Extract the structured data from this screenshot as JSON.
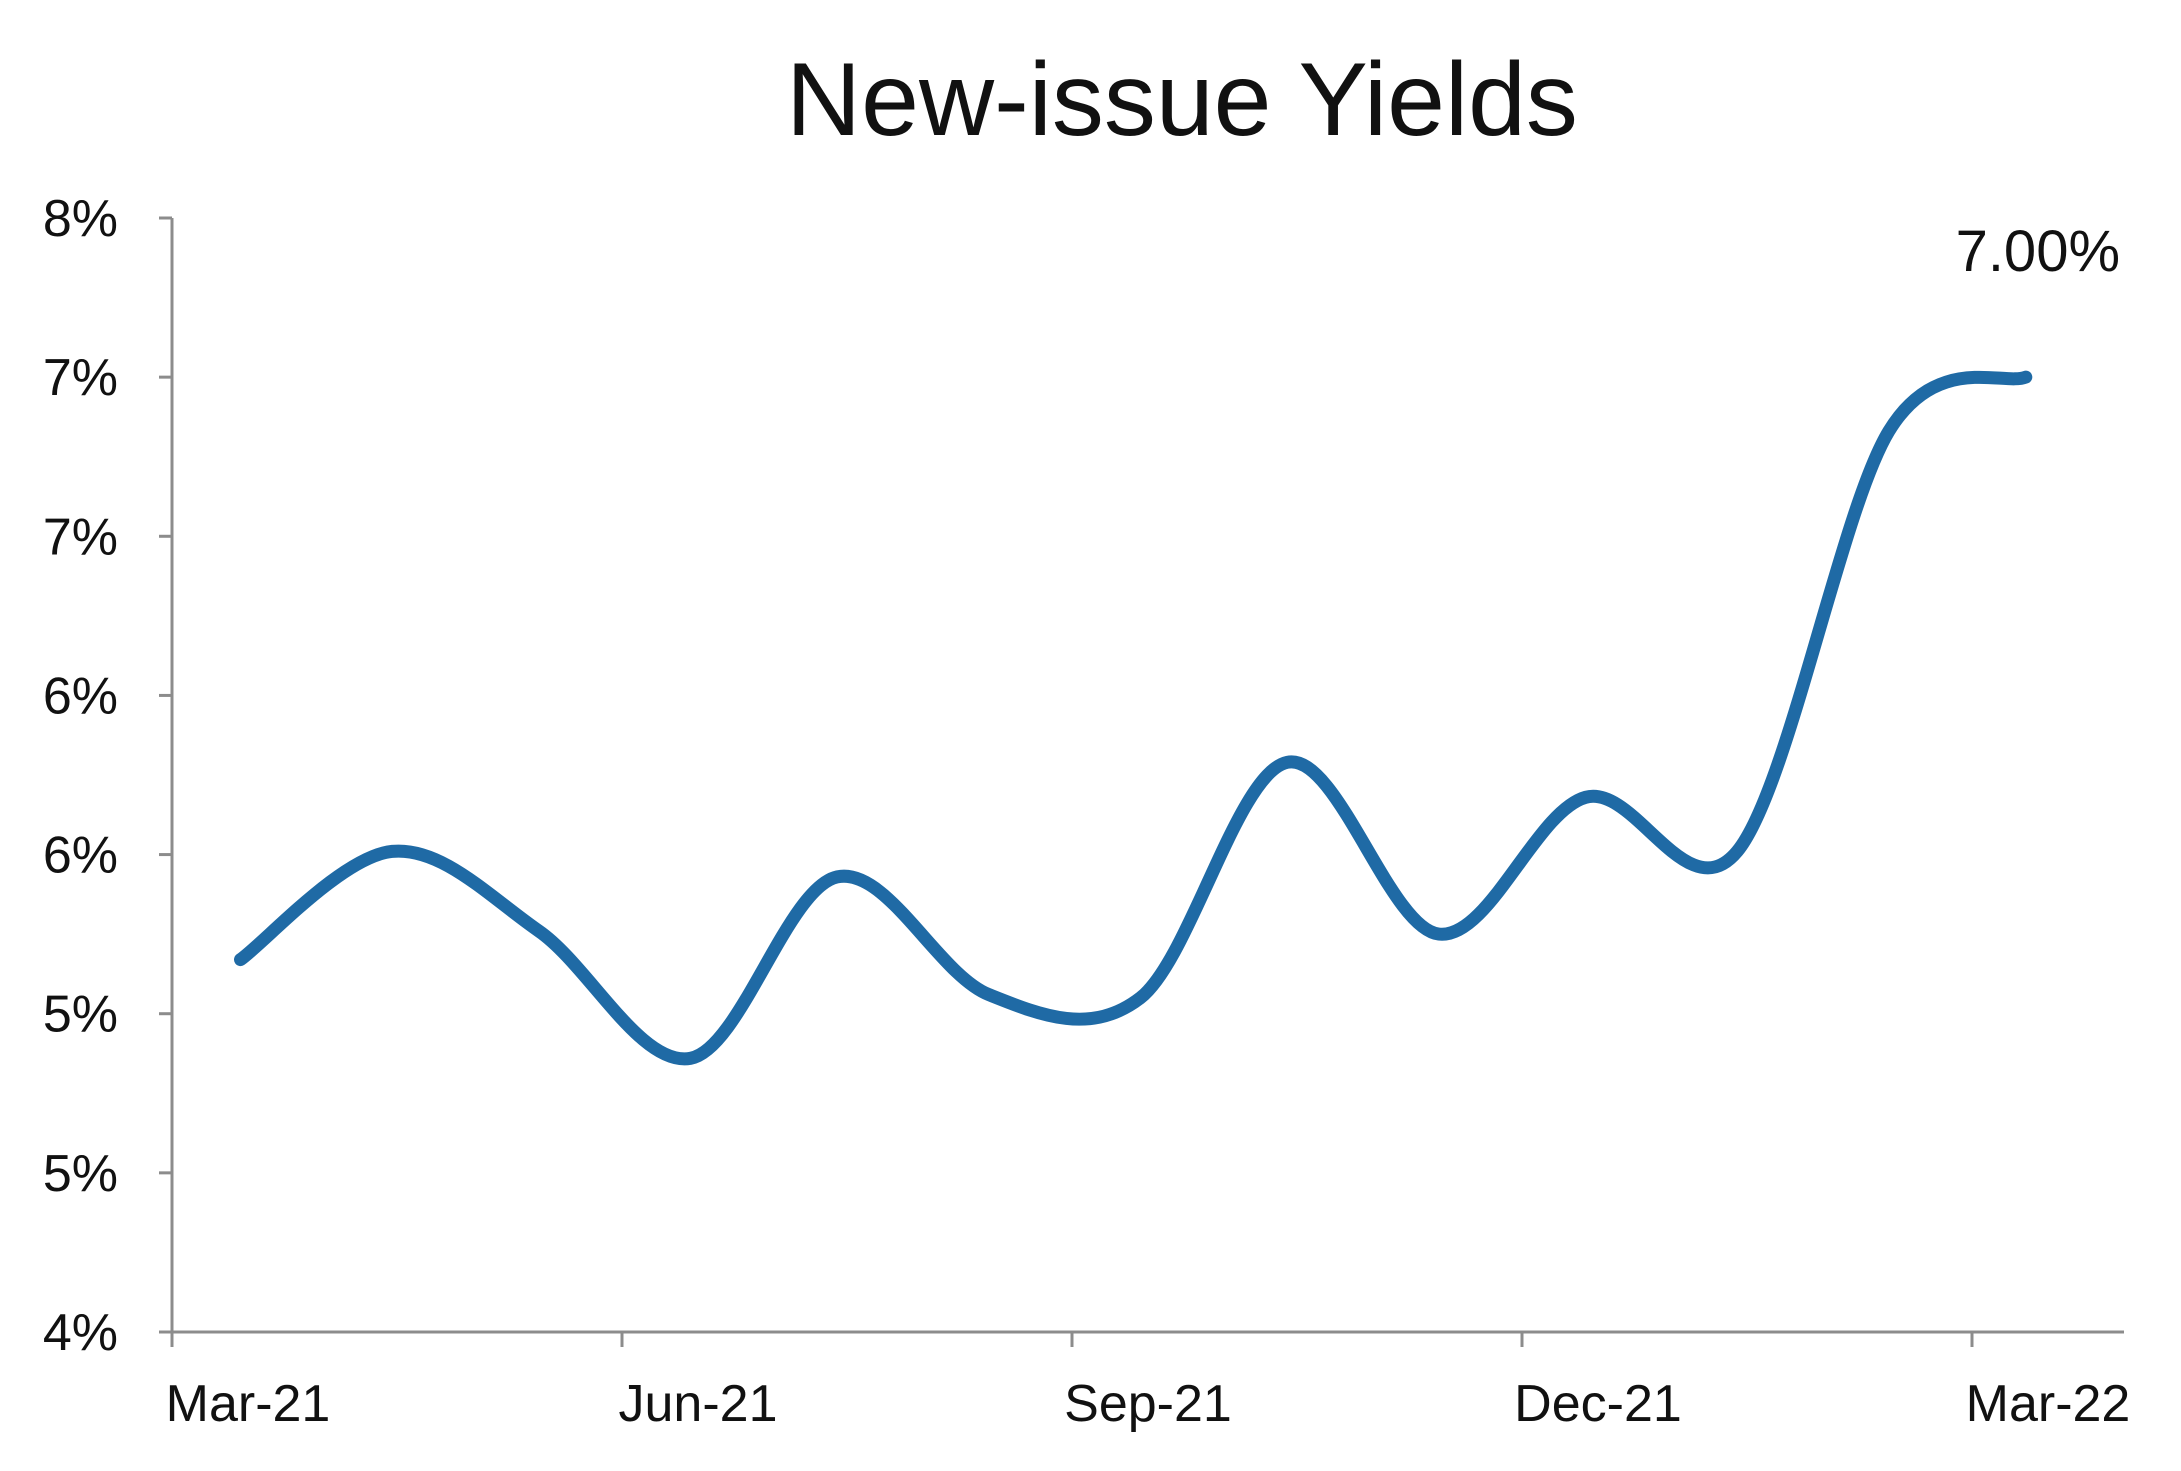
{
  "chart_data": {
    "type": "line",
    "title": "New-issue Yields",
    "xlabel": "",
    "ylabel": "",
    "x_tick_labels": [
      "Mar-21",
      "Jun-21",
      "Sep-21",
      "Dec-21",
      "Mar-22"
    ],
    "y_tick_labels": [
      "4%",
      "5%",
      "5%",
      "6%",
      "6%",
      "7%",
      "7%",
      "8%"
    ],
    "ylim": [
      4.0,
      7.5
    ],
    "y_tick_values": [
      4.0,
      4.5,
      5.0,
      5.5,
      6.0,
      6.5,
      7.0,
      7.5
    ],
    "grid": false,
    "series": [
      {
        "color": "#1f6aa5",
        "points": [
          {
            "x": "2021-03-15",
            "y": 5.17
          },
          {
            "x": "2021-04-15",
            "y": 5.51
          },
          {
            "x": "2021-05-15",
            "y": 5.26
          },
          {
            "x": "2021-06-15",
            "y": 4.86
          },
          {
            "x": "2021-07-15",
            "y": 5.43
          },
          {
            "x": "2021-08-15",
            "y": 5.06
          },
          {
            "x": "2021-09-15",
            "y": 5.05
          },
          {
            "x": "2021-10-15",
            "y": 5.79
          },
          {
            "x": "2021-11-15",
            "y": 5.25
          },
          {
            "x": "2021-12-15",
            "y": 5.68
          },
          {
            "x": "2022-01-15",
            "y": 5.51
          },
          {
            "x": "2022-02-15",
            "y": 6.83
          },
          {
            "x": "2022-03-15",
            "y": 7.0
          }
        ]
      }
    ],
    "annotations": [
      {
        "text": "7.00%",
        "x": "2022-03-15",
        "y": 7.0
      }
    ]
  }
}
